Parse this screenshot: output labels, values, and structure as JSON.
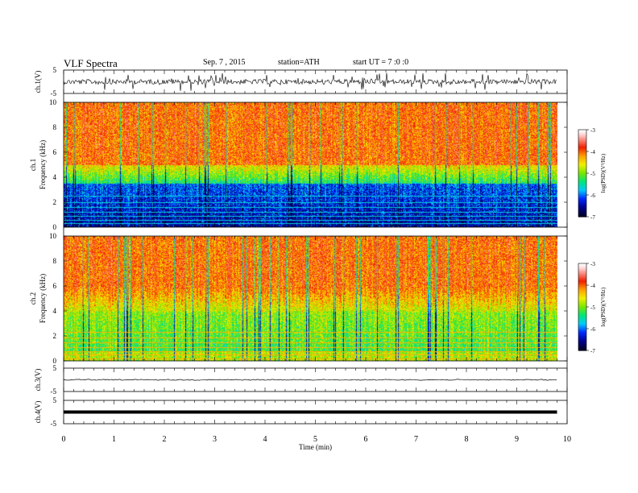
{
  "header": {
    "title": "VLF Spectra",
    "date": "Sep. 7 , 2015",
    "station": "station=ATH",
    "start": "start UT = 7 :0 :0"
  },
  "chart_data": [
    {
      "type": "line",
      "panel": "ch1",
      "ylabel": "ch.1(V)",
      "yticks": [
        "5",
        "-5"
      ],
      "ylim": [
        -5,
        5
      ],
      "description_level": 0,
      "x": [
        0,
        1,
        2,
        3,
        4,
        5,
        6,
        7,
        8,
        9,
        9.8
      ],
      "y": [
        0,
        0,
        0,
        0,
        0,
        0,
        0,
        0,
        0,
        0,
        0
      ]
    },
    {
      "type": "heatmap",
      "panel": "ch1-spectrogram",
      "ylabel_top": "ch.1",
      "ylabel": "Frequency (kHz)",
      "yticks": [
        "0",
        "2",
        "4",
        "6",
        "8",
        "10"
      ],
      "ylim": [
        0,
        10
      ],
      "xlim": [
        0,
        10
      ],
      "colorbar_label": "log(PSD)(V²/Hz)",
      "colorbar_ticks": [
        "-3",
        "-4",
        "-5",
        "-6",
        "-7"
      ]
    },
    {
      "type": "heatmap",
      "panel": "ch2-spectrogram",
      "ylabel_top": "ch.2",
      "ylabel": "Frequency (kHz)",
      "yticks": [
        "0",
        "2",
        "4",
        "6",
        "8",
        "10"
      ],
      "ylim": [
        0,
        10
      ],
      "xlim": [
        0,
        10
      ],
      "colorbar_label": "log(PSD)(V²/Hz)",
      "colorbar_ticks": [
        "-3",
        "-4",
        "-5",
        "-6",
        "-7"
      ]
    },
    {
      "type": "line",
      "panel": "ch3",
      "ylabel": "ch.3(V)",
      "yticks": [
        "5",
        "-5"
      ],
      "ylim": [
        -5,
        5
      ]
    },
    {
      "type": "line",
      "panel": "ch4",
      "ylabel": "ch.4(V)",
      "yticks": [
        "5",
        "-5"
      ],
      "ylim": [
        -5,
        5
      ]
    }
  ],
  "xaxis": {
    "label": "Time (min)",
    "ticks": [
      "0",
      "1",
      "2",
      "3",
      "4",
      "5",
      "6",
      "7",
      "8",
      "9",
      "10"
    ],
    "xlim": [
      0,
      10
    ],
    "data_end": 9.8
  }
}
